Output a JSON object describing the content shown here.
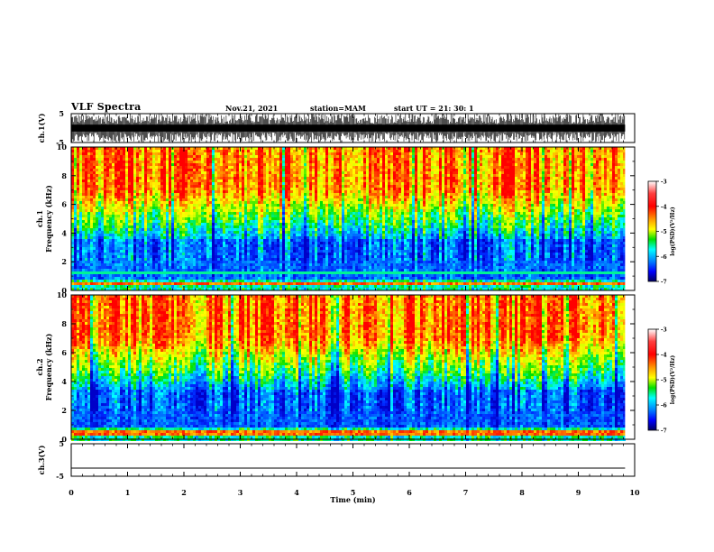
{
  "header": {
    "title": "VLF Spectra",
    "date": "Nov.21, 2021",
    "station": "station=MAM",
    "start": "start  UT =  21: 30: 1"
  },
  "colors": {
    "axis": "#000000",
    "colormap": [
      "#ffffff",
      "#ff0000",
      "#ff8c00",
      "#ffff00",
      "#00e000",
      "#00ffff",
      "#0080ff",
      "#0000ff",
      "#000060"
    ]
  },
  "chart_data": [
    {
      "type": "line",
      "panel": "waveform",
      "ylabel": "ch.1(V)",
      "ylim": [
        -5,
        5
      ],
      "yticks": [
        "5",
        "-5"
      ],
      "xlim": [
        0,
        10
      ],
      "description_series": [
        {
          "values_range": [
            -5,
            5
          ],
          "duration_min": [
            0,
            9.83
          ]
        }
      ]
    },
    {
      "type": "heatmap",
      "panel": "spectrogram",
      "ylabel_line1": "ch.1",
      "ylabel_line2": "Frequency (kHz)",
      "ylim": [
        0,
        10
      ],
      "yticks": [
        "0",
        "2",
        "4",
        "6",
        "8",
        "10"
      ],
      "xlim": [
        0,
        10
      ],
      "data_extent_min": [
        0,
        9.83
      ],
      "colorbar": {
        "label": "log(PSD)(V²/Hz)",
        "range": [
          -7,
          -3
        ],
        "ticks": [
          "-3",
          "-4",
          "-5",
          "-6",
          "-7"
        ]
      }
    },
    {
      "type": "heatmap",
      "panel": "spectrogram",
      "ylabel_line1": "ch.2",
      "ylabel_line2": "Frequency (kHz)",
      "ylim": [
        0,
        10
      ],
      "yticks": [
        "0",
        "2",
        "4",
        "6",
        "8",
        "10"
      ],
      "xlim": [
        0,
        10
      ],
      "data_extent_min": [
        0,
        9.83
      ],
      "colorbar": {
        "label": "log(PSD)(V²/Hz)",
        "range": [
          -7,
          -3
        ],
        "ticks": [
          "-3",
          "-4",
          "-5",
          "-6",
          "-7"
        ]
      }
    },
    {
      "type": "line",
      "panel": "waveform",
      "ylabel": "ch.3(V)",
      "ylim": [
        -5,
        5
      ],
      "yticks": [
        "5",
        "-5"
      ],
      "xlim": [
        0,
        10
      ],
      "xlabel": "Time (min)",
      "xticks": [
        "0",
        "1",
        "2",
        "3",
        "4",
        "5",
        "6",
        "7",
        "8",
        "9",
        "10"
      ],
      "series": [
        {
          "x": [
            0,
            9.83
          ],
          "y": [
            -2.5,
            -2.5
          ]
        }
      ]
    }
  ]
}
